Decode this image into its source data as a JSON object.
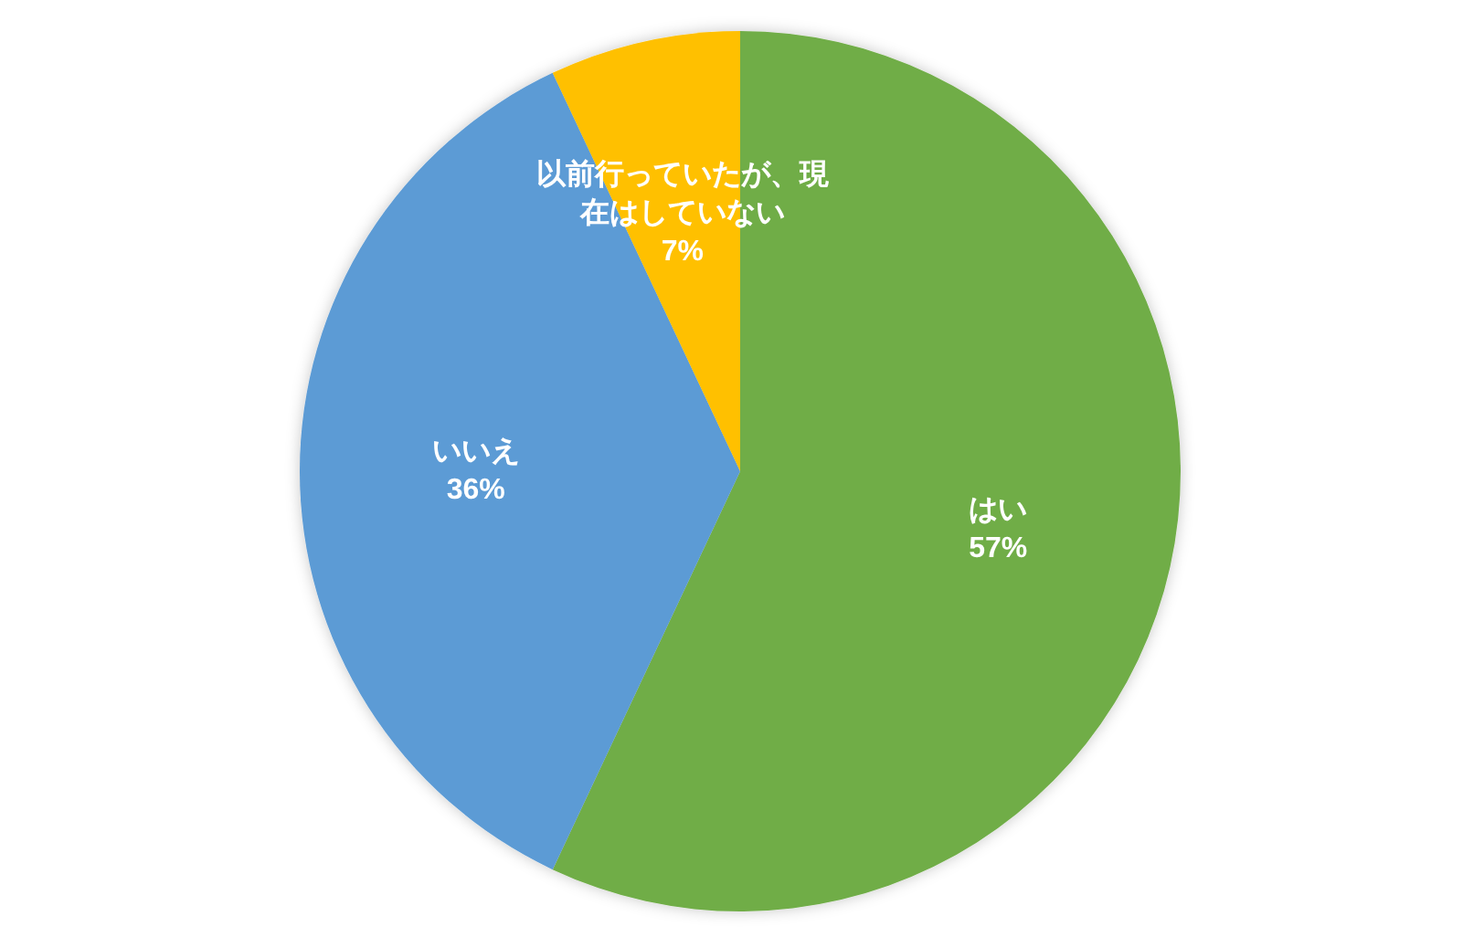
{
  "chart_data": {
    "type": "pie",
    "categories": [
      "はい",
      "いいえ",
      "以前行っていたが、現在はしていない"
    ],
    "values": [
      57,
      36,
      7
    ],
    "colors": [
      "#70ad47",
      "#5b9bd5",
      "#ffc000"
    ],
    "value_labels": [
      "57%",
      "36%",
      "7%"
    ]
  }
}
